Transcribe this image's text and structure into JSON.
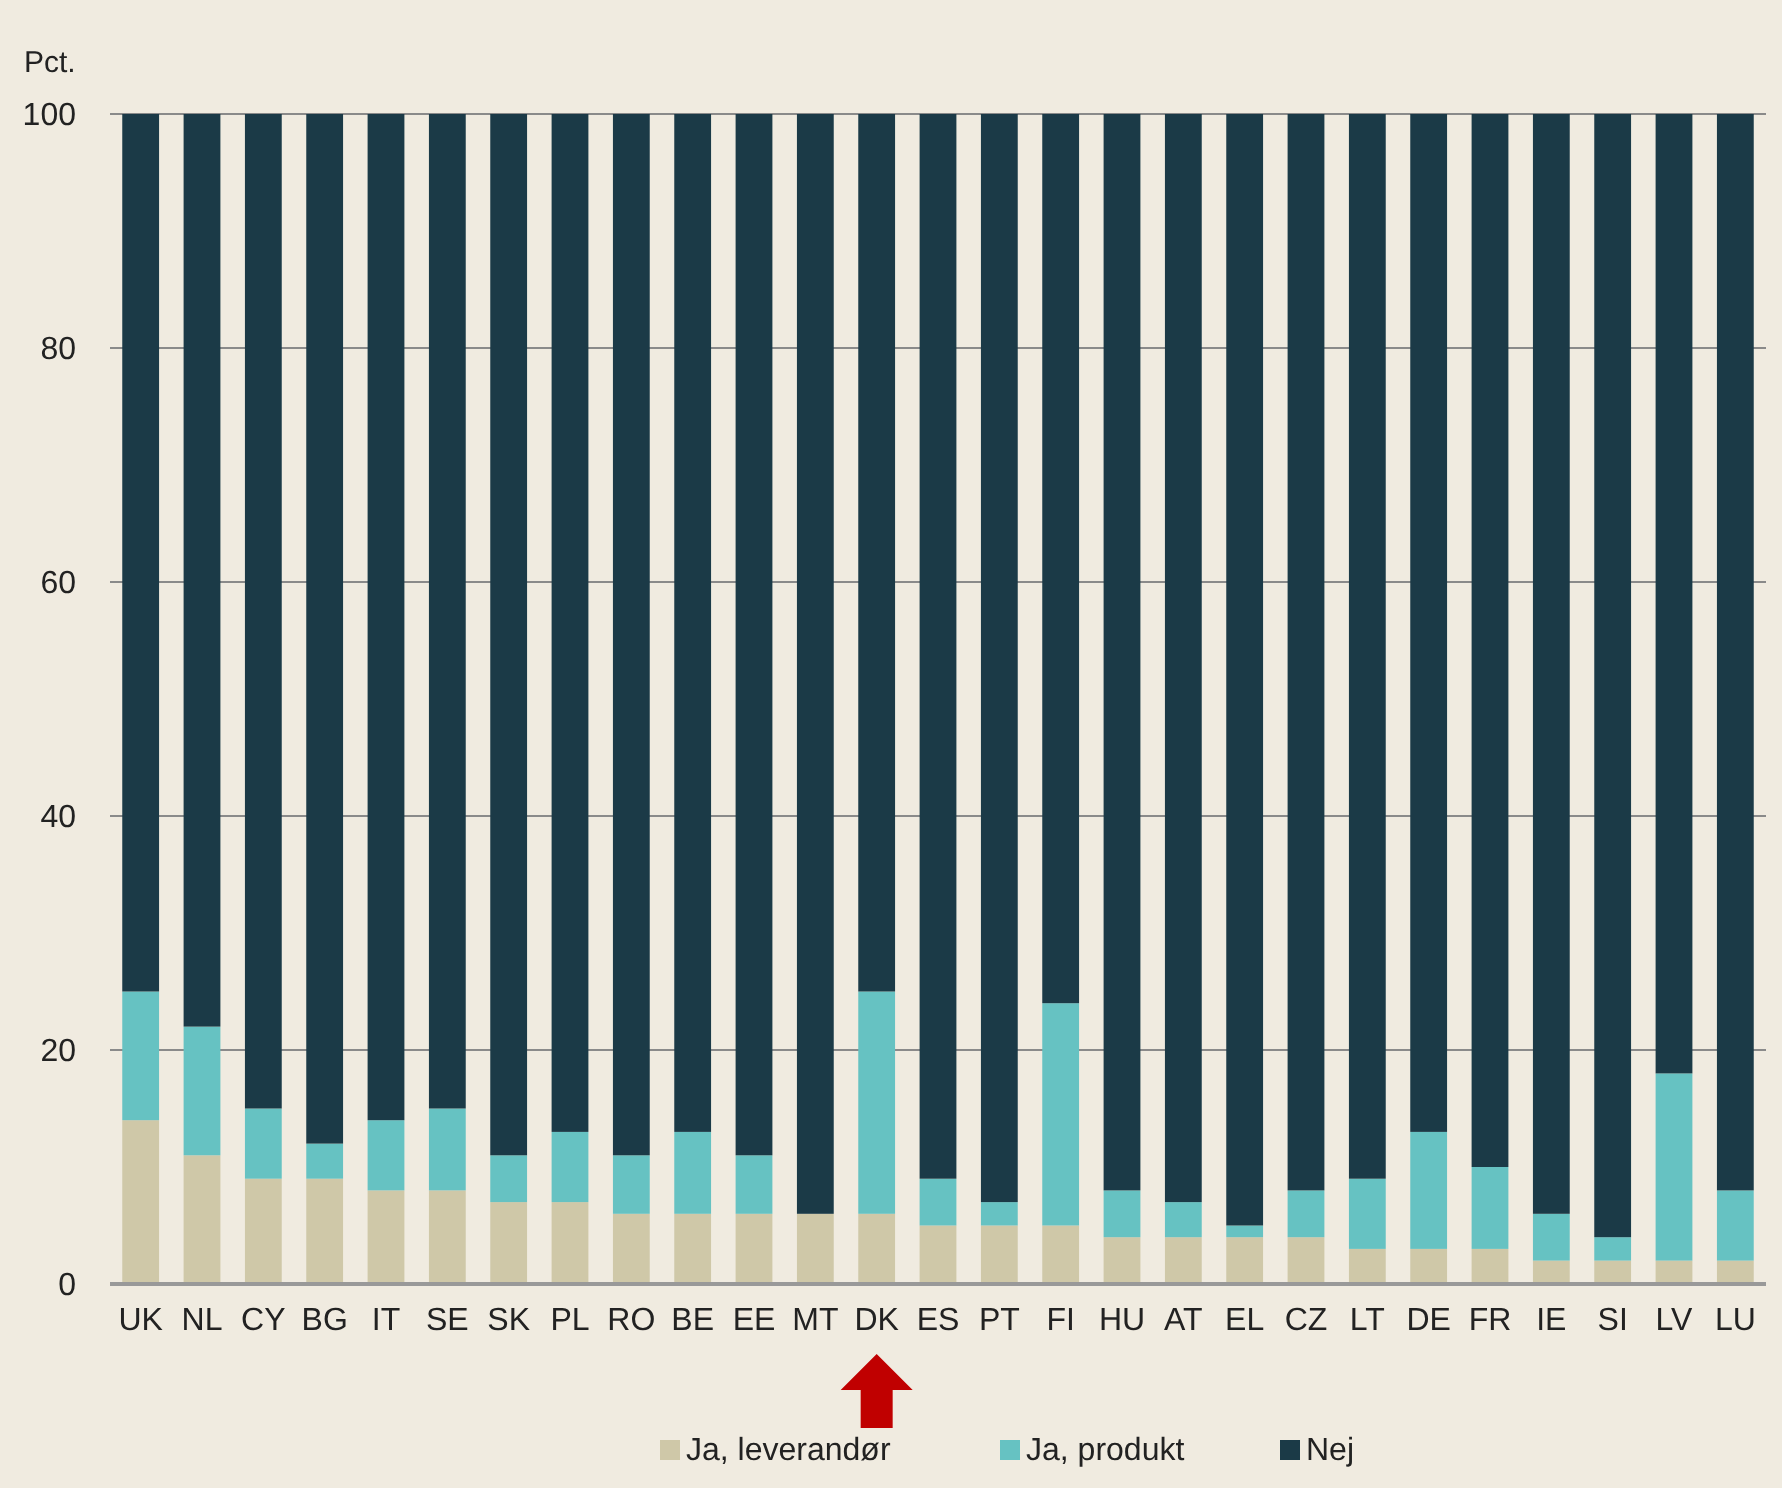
{
  "chart_data": {
    "type": "bar",
    "stacked": true,
    "ylabel": "Pct.",
    "categories": [
      "UK",
      "NL",
      "CY",
      "BG",
      "IT",
      "SE",
      "SK",
      "PL",
      "RO",
      "BE",
      "EE",
      "MT",
      "DK",
      "ES",
      "PT",
      "FI",
      "HU",
      "AT",
      "EL",
      "CZ",
      "LT",
      "DE",
      "FR",
      "IE",
      "SI",
      "LV",
      "LU"
    ],
    "series": [
      {
        "name": "Ja, leverandør",
        "color": "#cfc8a8",
        "values": [
          14,
          11,
          9,
          9,
          8,
          8,
          7,
          7,
          6,
          6,
          6,
          6,
          6,
          5,
          5,
          5,
          4,
          4,
          4,
          4,
          3,
          3,
          3,
          2,
          2,
          2,
          2
        ]
      },
      {
        "name": "Ja, produkt",
        "color": "#66c2c2",
        "values": [
          11,
          11,
          6,
          3,
          6,
          7,
          4,
          6,
          5,
          7,
          5,
          0,
          19,
          4,
          2,
          19,
          4,
          3,
          1,
          4,
          6,
          10,
          7,
          4,
          2,
          16,
          6
        ]
      },
      {
        "name": "Nej",
        "color": "#1b3a47",
        "values": [
          75,
          78,
          85,
          88,
          86,
          85,
          89,
          87,
          89,
          87,
          89,
          94,
          75,
          91,
          93,
          76,
          92,
          93,
          95,
          92,
          91,
          87,
          90,
          94,
          96,
          82,
          92
        ]
      }
    ],
    "ylim": [
      0,
      100
    ],
    "yticks": [
      0,
      20,
      40,
      60,
      80,
      100
    ],
    "grid": "y",
    "legend": "bottom"
  }
}
